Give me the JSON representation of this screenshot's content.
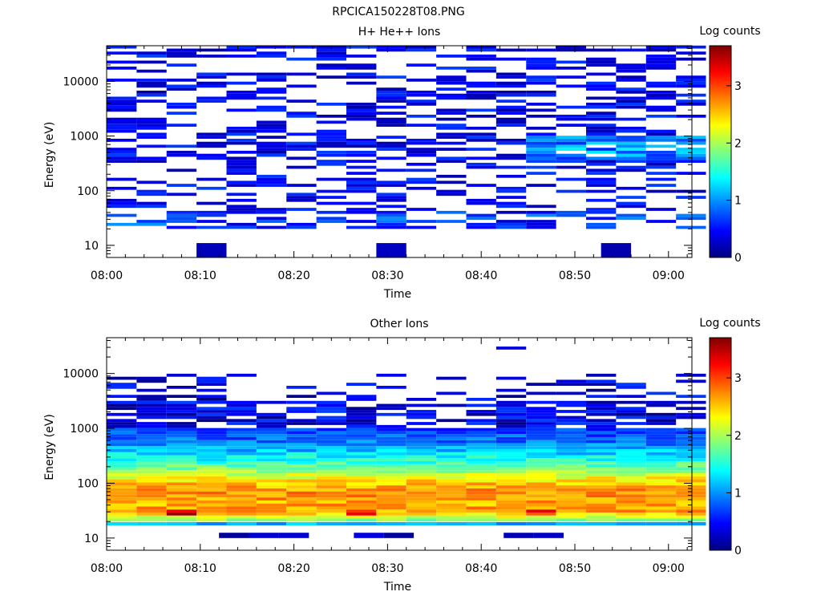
{
  "figure_title": "RPCICA150228T08.PNG",
  "colors": {
    "colormap": [
      "#00007f",
      "#0000ff",
      "#007fff",
      "#00ffff",
      "#7fff7f",
      "#ffff00",
      "#ff7f00",
      "#ff0000",
      "#7f0000"
    ],
    "background": "#ffffff",
    "axis": "#000000"
  },
  "chart_data": [
    {
      "type": "heatmap",
      "title": "H+ He++ Ions",
      "xlabel": "Time",
      "ylabel": "Energy (eV)",
      "x_ticks": [
        "08:00",
        "08:10",
        "08:20",
        "08:30",
        "08:40",
        "08:50",
        "09:00"
      ],
      "y_ticks": [
        "10",
        "100",
        "1000",
        "10000"
      ],
      "y_scale": "log",
      "ylim": [
        6,
        45000
      ],
      "xlim_minutes": [
        0,
        62.5
      ],
      "colorbar": {
        "label": "Log counts",
        "ticks": [
          "0",
          "1",
          "2",
          "3"
        ],
        "range": [
          0,
          3.7
        ]
      },
      "time_bins_minutes": [
        1.6,
        4.8,
        8,
        11.2,
        14.4,
        17.6,
        20.8,
        24,
        27.2,
        30.4,
        33.6,
        36.8,
        40,
        43.2,
        46.4,
        49.6,
        52.8,
        56,
        59.2,
        62.4
      ],
      "summary": {
        "typical_level": "0-0.8 log counts across 20-40000 eV",
        "peak_level": "about 1.3 log counts near 500-800 eV after 08:45",
        "low_energy_band": "0.5-1 log counts at 25-35 eV",
        "isolated_bins": "10 eV bins near 08:12, 08:32 and 08:54"
      }
    },
    {
      "type": "heatmap",
      "title": "Other Ions",
      "xlabel": "Time",
      "ylabel": "Energy (eV)",
      "x_ticks": [
        "08:00",
        "08:10",
        "08:20",
        "08:30",
        "08:40",
        "08:50",
        "09:00"
      ],
      "y_ticks": [
        "10",
        "100",
        "1000",
        "10000"
      ],
      "y_scale": "log",
      "ylim": [
        6,
        45000
      ],
      "xlim_minutes": [
        0,
        62.5
      ],
      "colorbar": {
        "label": "Log counts",
        "ticks": [
          "0",
          "1",
          "2",
          "3"
        ],
        "range": [
          0,
          3.7
        ]
      },
      "time_bins_minutes": [
        1.6,
        4.8,
        8,
        11.2,
        14.4,
        17.6,
        20.8,
        24,
        27.2,
        30.4,
        33.6,
        36.8,
        40,
        43.2,
        46.4,
        49.6,
        52.8,
        56,
        59.2,
        62.4
      ],
      "summary": {
        "peak_level": "about 3.5 log counts near 25-30 eV at 08:08-08:10",
        "core_band": "2-3 log counts between 25 and 300 eV",
        "mid_band": "1-1.8 log counts between 300 and 1000 eV",
        "high_energy": "0-0.7 log counts between 1000 and 8000 eV, occasional bins up to 20000 eV",
        "cyan_line": "about 1.2 log counts at 18 eV",
        "low_energy_bins": "0-0.5 log counts at 10-12 eV near 08:12-08:20, 08:28-08:34, 08:44-08:49"
      }
    }
  ]
}
